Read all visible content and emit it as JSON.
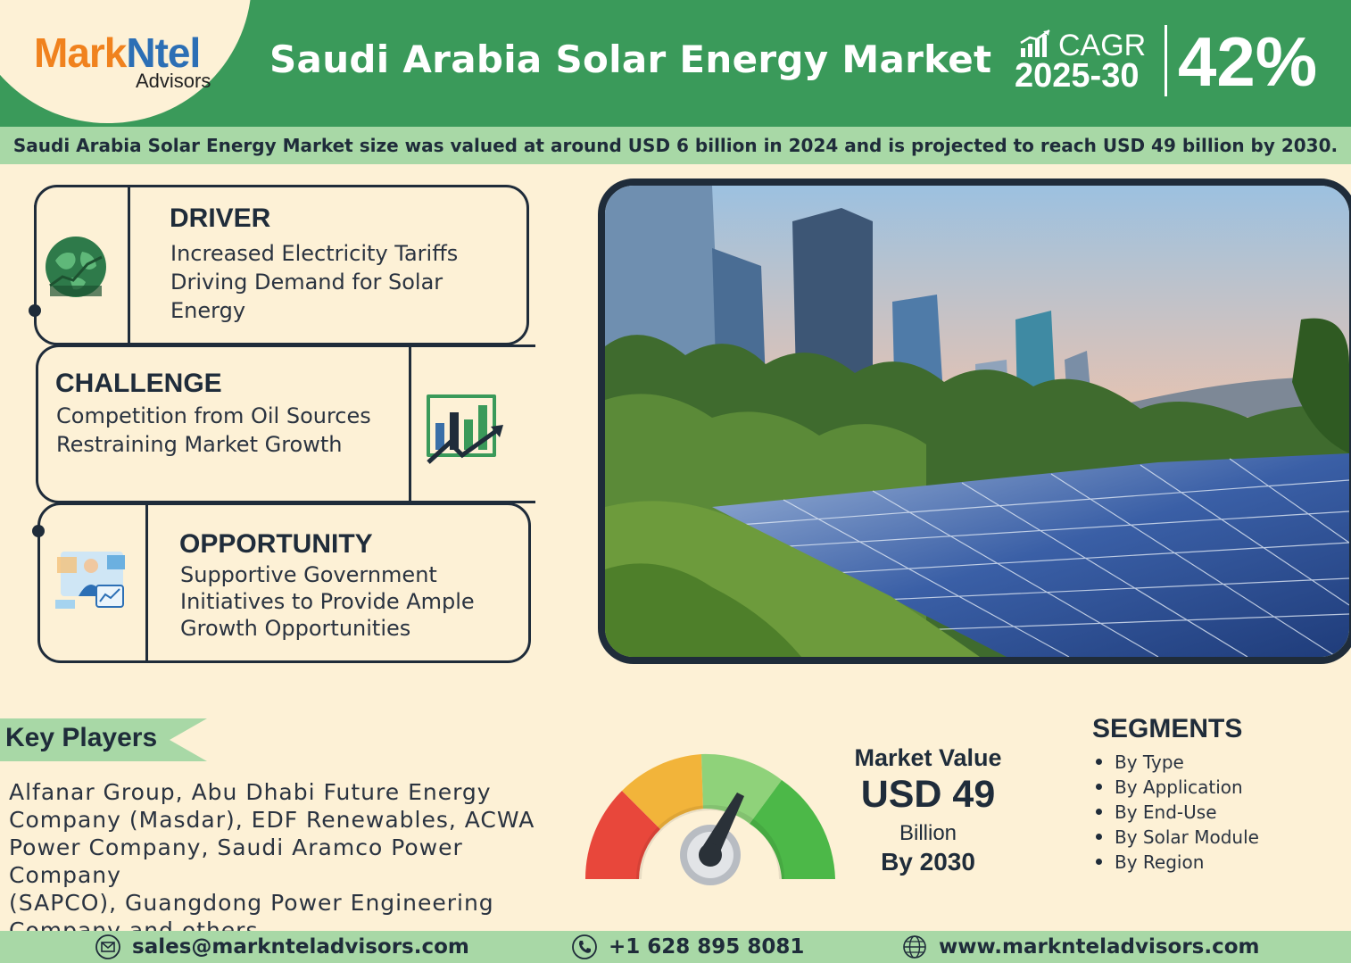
{
  "header": {
    "logo_part1": "Mark",
    "logo_part2": "Ntel",
    "logo_sub": "Advisors",
    "title": "Saudi Arabia Solar Energy Market",
    "cagr_label": "CAGR",
    "cagr_years": "2025-30",
    "cagr_value": "42%"
  },
  "summary": "Saudi Arabia Solar Energy Market size was valued at around USD 6 billion in 2024 and is projected to reach USD 49 billion by 2030.",
  "driver": {
    "title": "DRIVER",
    "lines": [
      "Increased Electricity Tariffs",
      "Driving Demand for Solar",
      "Energy"
    ]
  },
  "challenge": {
    "title": "CHALLENGE",
    "lines": [
      "Competition from Oil Sources",
      "Restraining Market Growth"
    ]
  },
  "opportunity": {
    "title": "OPPORTUNITY",
    "lines": [
      "Supportive Government",
      "Initiatives to Provide Ample",
      "Growth Opportunities"
    ]
  },
  "key_players": {
    "label": "Key Players",
    "lines": [
      "Alfanar Group, Abu Dhabi Future Energy",
      "Company (Masdar), EDF Renewables, ACWA",
      "Power Company, Saudi Aramco Power Company",
      "(SAPCO), Guangdong Power Engineering",
      "Company and others."
    ]
  },
  "market_value": {
    "label": "Market Value",
    "value": "USD 49",
    "unit": "Billion",
    "year": "By 2030"
  },
  "segments": {
    "title": "SEGMENTS",
    "items": [
      "By Type",
      "By Application",
      "By End-Use",
      "By Solar Module",
      "By Region"
    ]
  },
  "footer": {
    "email": "sales@marknteladvisors.com",
    "phone": "+1 628 895 8081",
    "website": "www.marknteladvisors.com"
  },
  "colors": {
    "brand_green": "#3a9a5a",
    "light_green": "#a8d8a6",
    "cream": "#fdf1d6",
    "dark": "#1f2c3a",
    "logo_orange": "#f0821e",
    "logo_blue": "#2c6fb5"
  },
  "icons": [
    "chart-icon",
    "driver-globe-icon",
    "growth-chart-icon",
    "opportunity-analyst-icon",
    "email-icon",
    "phone-icon",
    "globe-icon",
    "gauge-icon"
  ]
}
